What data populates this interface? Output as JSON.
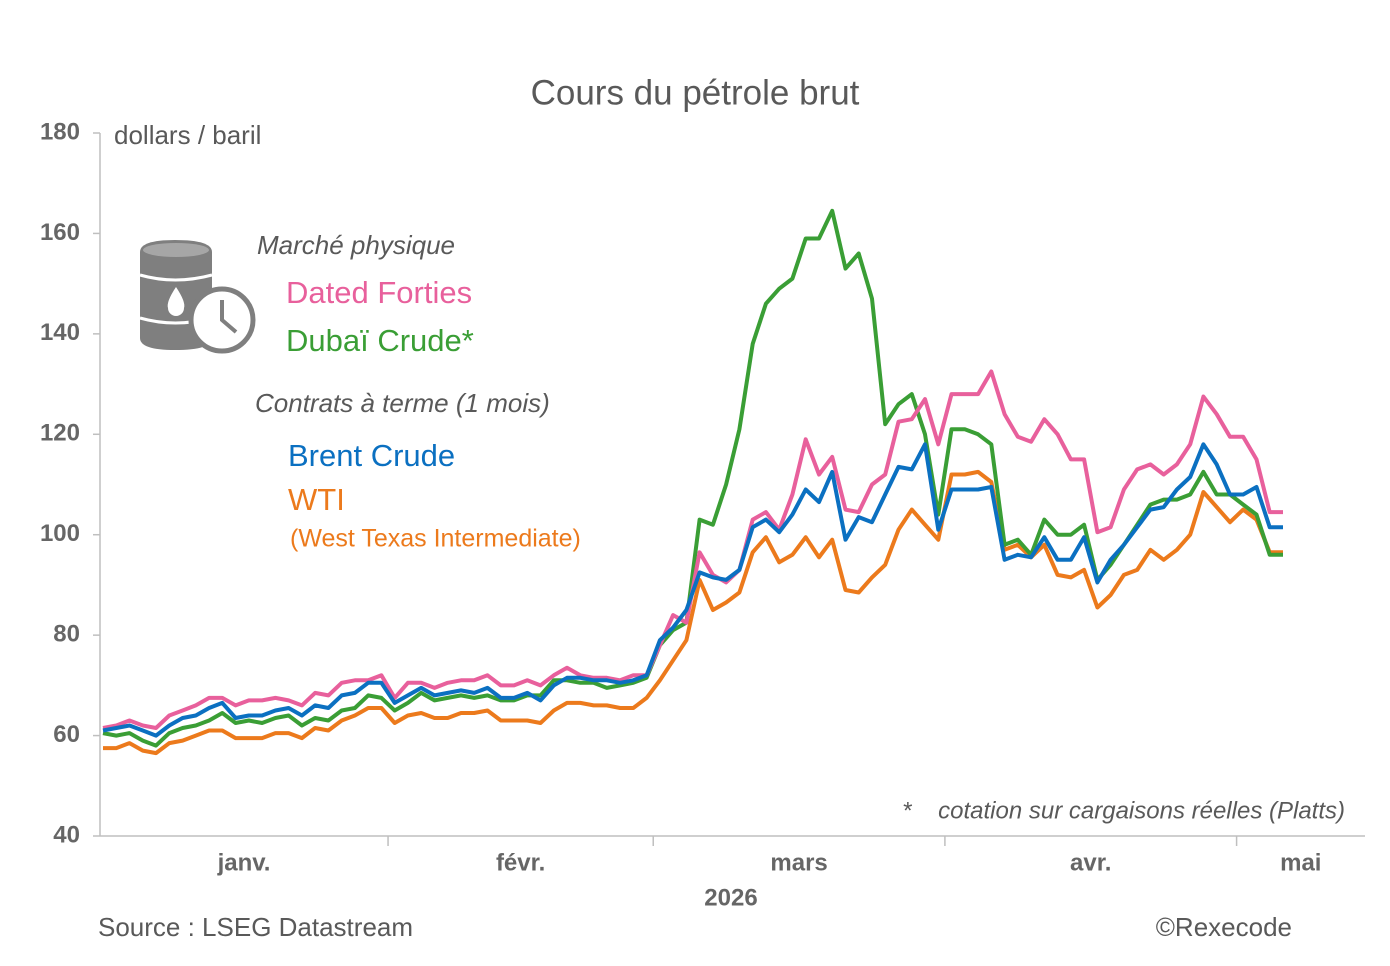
{
  "chart_data": {
    "type": "line",
    "title": "Cours du pétrole brut",
    "y_label": "dollars / baril",
    "x_label": "2026",
    "legend_headings": [
      "Marché physique",
      "Contrats à terme (1 mois)"
    ],
    "footnote": "*    cotation sur cargaisons réelles (Platts)",
    "source": "Source : LSEG Datastream",
    "credit": "©Rexecode",
    "categories": [
      "janv.",
      "janv.",
      "janv.",
      "janv.",
      "janv.",
      "janv.",
      "janv.",
      "janv.",
      "janv.",
      "janv.",
      "janv.",
      "janv.",
      "janv.",
      "janv.",
      "janv.",
      "janv.",
      "janv.",
      "janv.",
      "janv.",
      "janv.",
      "janv.",
      "janv.",
      "févr.",
      "févr.",
      "févr.",
      "févr.",
      "févr.",
      "févr.",
      "févr.",
      "févr.",
      "févr.",
      "févr.",
      "févr.",
      "févr.",
      "févr.",
      "févr.",
      "févr.",
      "févr.",
      "févr.",
      "févr.",
      "févr.",
      "févr.",
      "mars",
      "mars",
      "mars",
      "mars",
      "mars",
      "mars",
      "mars",
      "mars",
      "mars",
      "mars",
      "mars",
      "mars",
      "mars",
      "mars",
      "mars",
      "mars",
      "mars",
      "mars",
      "mars",
      "mars",
      "mars",
      "mars",
      "avr.",
      "avr.",
      "avr.",
      "avr.",
      "avr.",
      "avr.",
      "avr.",
      "avr.",
      "avr.",
      "avr.",
      "avr.",
      "avr.",
      "avr.",
      "avr.",
      "avr.",
      "avr.",
      "avr.",
      "avr.",
      "avr.",
      "avr.",
      "avr.",
      "avr.",
      "mai",
      "mai",
      "mai",
      "mai"
    ],
    "series": [
      {
        "name": "Dated Forties",
        "color": "#e8609c",
        "values": [
          61.5,
          62,
          63,
          62,
          61.5,
          64,
          65,
          66,
          67.5,
          67.5,
          66,
          67,
          67,
          67.5,
          67,
          66,
          68.5,
          68,
          70.5,
          71,
          71,
          72,
          67.5,
          70.5,
          70.5,
          69.5,
          70.5,
          71,
          71,
          72,
          70,
          70,
          71,
          70,
          72,
          73.5,
          72,
          71.5,
          71.5,
          71,
          72,
          72,
          78,
          84,
          82.5,
          96.5,
          92,
          90.5,
          93,
          103,
          104.5,
          101,
          108,
          119,
          112,
          115.5,
          105,
          104.5,
          110,
          112,
          122.5,
          123,
          127,
          118,
          128,
          128,
          128,
          132.5,
          124,
          119.5,
          118.5,
          123,
          120,
          115,
          115,
          100.5,
          101.5,
          109,
          113,
          114,
          112,
          114,
          118,
          127.5,
          124,
          119.5,
          119.5,
          115,
          104.5,
          104.5
        ]
      },
      {
        "name": "Dubaï Crude*",
        "color": "#3a9e35",
        "values": [
          60.5,
          60,
          60.5,
          59,
          58,
          60.5,
          61.5,
          62,
          63,
          64.5,
          62.5,
          63,
          62.5,
          63.5,
          64,
          62,
          63.5,
          63,
          65,
          65.5,
          68,
          67.5,
          65,
          66.5,
          68.5,
          67,
          67.5,
          68,
          67.5,
          68,
          67,
          67,
          68,
          68,
          71,
          71,
          70.5,
          70.5,
          69.5,
          70,
          70.5,
          71.5,
          78,
          81,
          82.5,
          103,
          102,
          110,
          121,
          138,
          146,
          149,
          151,
          159,
          159,
          164.5,
          153,
          156,
          147,
          122,
          126,
          128,
          120,
          104,
          121,
          121,
          120,
          118,
          98,
          99,
          96,
          103,
          100,
          100,
          102,
          91,
          94,
          98,
          102,
          106,
          107,
          107,
          108,
          112.5,
          108,
          108,
          106,
          104,
          96,
          96
        ]
      },
      {
        "name": "Brent Crude",
        "color": "#0b70c1",
        "values": [
          61,
          61.5,
          62,
          61,
          60,
          62,
          63.5,
          64,
          65.5,
          66.5,
          63.5,
          64,
          64,
          65,
          65.5,
          64,
          66,
          65.5,
          68,
          68.5,
          70.5,
          70.5,
          66.5,
          68,
          69.5,
          68,
          68.5,
          69,
          68.5,
          69.5,
          67.5,
          67.5,
          68.5,
          67,
          70,
          71.5,
          71.5,
          71,
          71,
          70.5,
          71,
          72,
          79,
          81.5,
          85,
          92.5,
          91.5,
          91,
          93,
          101.5,
          103,
          100.5,
          104,
          109,
          106.5,
          112.5,
          99,
          103.5,
          102.5,
          108,
          113.5,
          113,
          118,
          101,
          109,
          109,
          109,
          109.5,
          95,
          96,
          95.5,
          99.5,
          95,
          95,
          99.5,
          90.5,
          95,
          98,
          101.5,
          105,
          105.5,
          109,
          111.5,
          118,
          114,
          108,
          108,
          109.5,
          101.5,
          101.5
        ]
      },
      {
        "name": "WTI",
        "subtitle": "(West Texas Intermediate)",
        "color": "#ec7a1c",
        "values": [
          57.5,
          57.5,
          58.5,
          57,
          56.5,
          58.5,
          59,
          60,
          61,
          61,
          59.5,
          59.5,
          59.5,
          60.5,
          60.5,
          59.5,
          61.5,
          61,
          63,
          64,
          65.5,
          65.5,
          62.5,
          64,
          64.5,
          63.5,
          63.5,
          64.5,
          64.5,
          65,
          63,
          63,
          63,
          62.5,
          65,
          66.5,
          66.5,
          66,
          66,
          65.5,
          65.5,
          67.5,
          71,
          75,
          79,
          91,
          85,
          86.5,
          88.5,
          96.5,
          99.5,
          94.5,
          96,
          99.5,
          95.5,
          99,
          89,
          88.5,
          91.5,
          94,
          101,
          105,
          102,
          99,
          112,
          112,
          112.5,
          110.5,
          97,
          98,
          95.5,
          98,
          92,
          91.5,
          93,
          85.5,
          88,
          92,
          93,
          97,
          95,
          97,
          100,
          108.5,
          105.5,
          102.5,
          105,
          103,
          96.5,
          96.5
        ]
      }
    ],
    "ylim": [
      40,
      180
    ],
    "yticks": [
      40,
      60,
      80,
      100,
      120,
      140,
      160,
      180
    ],
    "grid": false
  }
}
